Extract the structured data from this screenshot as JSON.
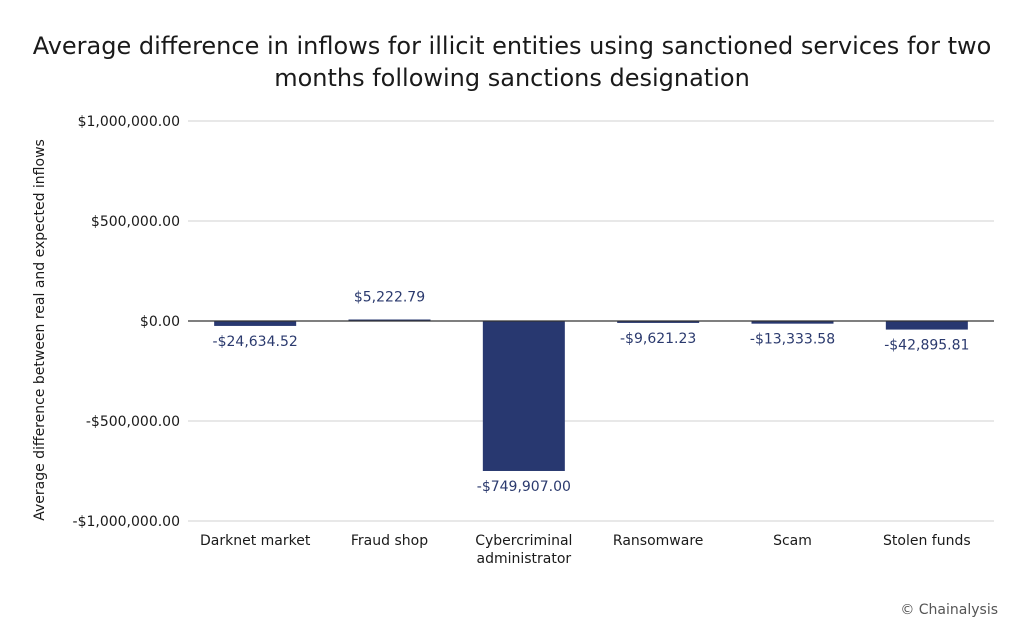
{
  "chart_data": {
    "type": "bar",
    "title_lines": [
      "Average difference in inflows for illicit entities using sanctioned services for two",
      "months following sanctions designation"
    ],
    "ylabel": "Average difference between real and expected inflows",
    "xlabel": "",
    "ylim": [
      -1000000,
      1000000
    ],
    "yticks": [
      1000000,
      500000,
      0,
      -500000,
      -1000000
    ],
    "ytick_labels": [
      "$1,000,000.00",
      "$500,000.00",
      "$0.00",
      "-$500,000.00",
      "-$1,000,000.00"
    ],
    "grid": true,
    "categories": [
      [
        "Darknet market"
      ],
      [
        "Fraud shop"
      ],
      [
        "Cybercriminal",
        "administrator"
      ],
      [
        "Ransomware"
      ],
      [
        "Scam"
      ],
      [
        "Stolen funds"
      ]
    ],
    "values": [
      -24634.52,
      5222.79,
      -749907.0,
      -9621.23,
      -13333.58,
      -42895.81
    ],
    "data_labels": [
      "-$24,634.52",
      "$5,222.79",
      "-$749,907.00",
      "-$9,621.23",
      "-$13,333.58",
      "-$42,895.81"
    ]
  },
  "colors": {
    "bar": "#283870",
    "data_label": "#2b3a6e",
    "grid": "#d0d0d0",
    "zero_line": "#333333"
  },
  "credit": "© Chainalysis"
}
